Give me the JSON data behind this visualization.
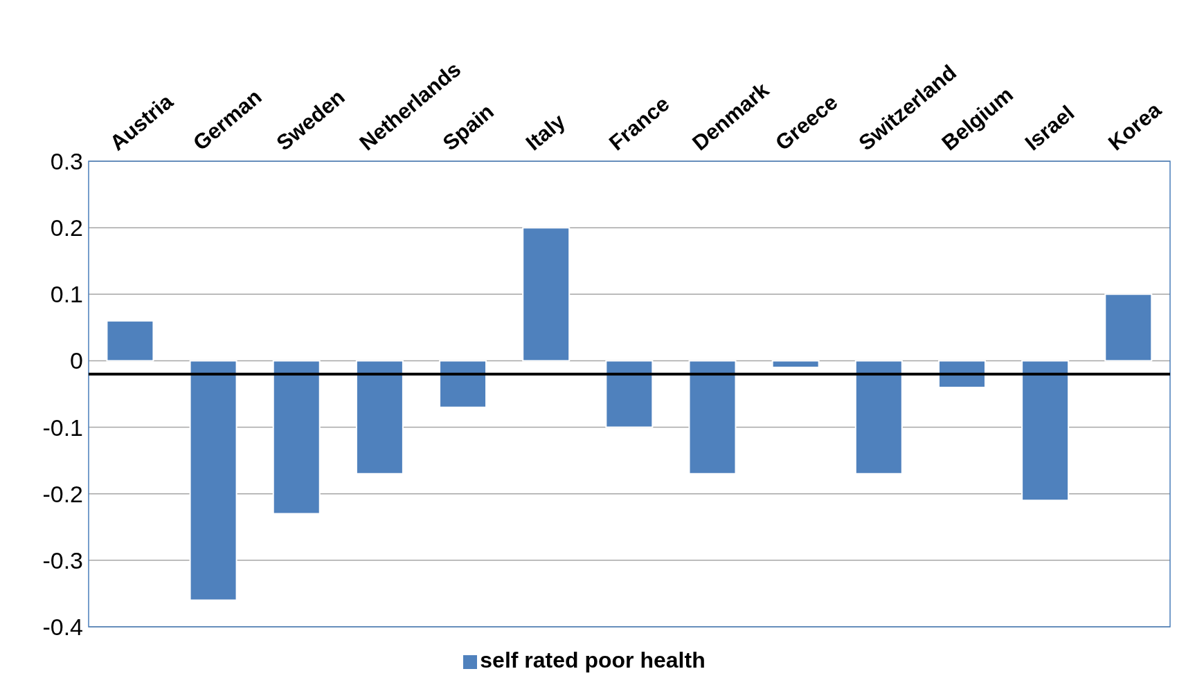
{
  "chart_data": {
    "type": "bar",
    "categories": [
      "Austria",
      "German",
      "Sweden",
      "Netherlands",
      "Spain",
      "Italy",
      "France",
      "Denmark",
      "Greece",
      "Switzerland",
      "Belgium",
      "Israel",
      "Korea"
    ],
    "series": [
      {
        "name": "self rated poor health",
        "color": "#4f81bd",
        "values": [
          0.06,
          -0.36,
          -0.23,
          -0.17,
          -0.07,
          0.2,
          -0.1,
          -0.17,
          -0.01,
          -0.17,
          -0.04,
          -0.21,
          0.1
        ]
      }
    ],
    "ylim": [
      -0.4,
      0.3
    ],
    "yticks": [
      -0.4,
      -0.3,
      -0.2,
      -0.1,
      0,
      0.1,
      0.2,
      0.3
    ],
    "grid": "y",
    "legend": "bottom",
    "ref_lines": [
      {
        "axis": "y",
        "value": -0.02,
        "color": "#000000"
      }
    ]
  }
}
